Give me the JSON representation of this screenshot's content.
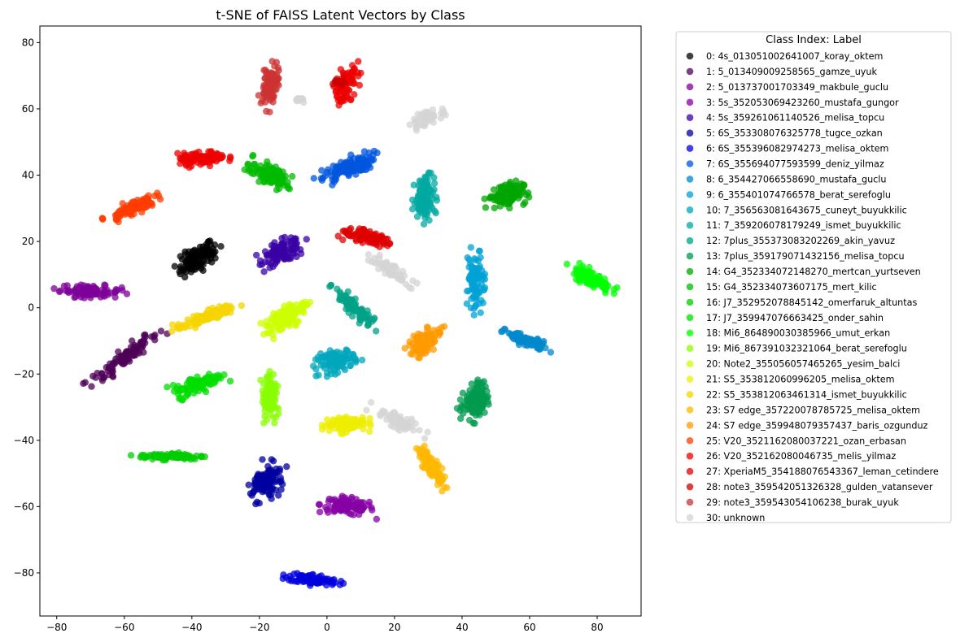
{
  "chart_data": {
    "type": "scatter",
    "title": "t-SNE of FAISS Latent Vectors by Class",
    "xlabel": "",
    "ylabel": "",
    "xlim": [
      -85,
      93
    ],
    "ylim": [
      -93,
      85
    ],
    "xticks": [
      -80,
      -60,
      -40,
      -20,
      0,
      20,
      40,
      60,
      80
    ],
    "yticks": [
      -80,
      -60,
      -40,
      -20,
      0,
      20,
      40,
      60,
      80
    ],
    "grid": false,
    "legend": {
      "title": "Class Index: Label",
      "placement": "outside-right"
    },
    "series": [
      {
        "name": "0: 4s_013051002641007_koray_oktem",
        "color": "#000000",
        "clusters": [
          {
            "x": -38,
            "y": 15,
            "a": 7,
            "b": 3.2,
            "angle": 35,
            "n": 110
          }
        ]
      },
      {
        "name": "1: 5_013409009258565_gamze_uyuk",
        "color": "#4d0055",
        "clusters": [
          {
            "x": -60,
            "y": -15,
            "a": 12,
            "b": 2.2,
            "angle": 38,
            "n": 100
          }
        ]
      },
      {
        "name": "2: 5_013737001703349_makbule_guclu",
        "color": "#7e0098",
        "clusters": [
          {
            "x": -70,
            "y": 5,
            "a": 9,
            "b": 1.8,
            "angle": -3,
            "n": 95
          }
        ]
      },
      {
        "name": "3: 5s_352053069423260_mustafa_gungor",
        "color": "#8500a4",
        "clusters": [
          {
            "x": 6,
            "y": -60,
            "a": 8,
            "b": 2.5,
            "angle": -5,
            "n": 100
          }
        ]
      },
      {
        "name": "4: 5s_359261061140526_melisa_topcu",
        "color": "#3a00a6",
        "clusters": [
          {
            "x": -13,
            "y": 17,
            "a": 6.5,
            "b": 3.2,
            "angle": 20,
            "n": 105
          }
        ]
      },
      {
        "name": "5: 6S_353308076325778_tugce_ozkan",
        "color": "#0000a0",
        "clusters": [
          {
            "x": -18,
            "y": -53,
            "a": 6,
            "b": 4,
            "angle": 65,
            "n": 105
          }
        ]
      },
      {
        "name": "6: 6S_355396082974273_melisa_oktem",
        "color": "#0000dd",
        "clusters": [
          {
            "x": -4,
            "y": -82,
            "a": 7.5,
            "b": 1.6,
            "angle": -8,
            "n": 100
          }
        ]
      },
      {
        "name": "7: 6S_355694077593599_deniz_yilmaz",
        "color": "#0055dd",
        "clusters": [
          {
            "x": 6,
            "y": 42,
            "a": 8.5,
            "b": 2.8,
            "angle": 25,
            "n": 110
          }
        ]
      },
      {
        "name": "8: 6_354427066558690_mustafa_guclu",
        "color": "#0088cc",
        "clusters": [
          {
            "x": 59,
            "y": -10,
            "a": 7,
            "b": 1.6,
            "angle": -20,
            "n": 90
          }
        ]
      },
      {
        "name": "9: 6_355401074766578_berat_serefoglu",
        "color": "#00a2d6",
        "clusters": [
          {
            "x": 44,
            "y": 8,
            "a": 8.5,
            "b": 2.3,
            "angle": 90,
            "n": 100
          }
        ]
      },
      {
        "name": "10: 7_356563081643675_cuneyt_buyukkilic",
        "color": "#00a7bc",
        "clusters": [
          {
            "x": 3,
            "y": -16,
            "a": 6,
            "b": 3.2,
            "angle": 15,
            "n": 100
          }
        ]
      },
      {
        "name": "11: 7_359206078179249_ismet_buyukkilic",
        "color": "#00a8a2",
        "clusters": [
          {
            "x": 29,
            "y": 33,
            "a": 6.5,
            "b": 3,
            "angle": 85,
            "n": 110
          }
        ]
      },
      {
        "name": "12: 7plus_355373083202269_akin_yavuz",
        "color": "#00a286",
        "clusters": [
          {
            "x": 8,
            "y": 0,
            "a": 8,
            "b": 1.8,
            "angle": -45,
            "n": 100
          }
        ]
      },
      {
        "name": "13: 7plus_359179071432156_melisa_topcu",
        "color": "#009a4d",
        "clusters": [
          {
            "x": 44,
            "y": -28,
            "a": 5.5,
            "b": 3.6,
            "angle": 70,
            "n": 110
          }
        ]
      },
      {
        "name": "14: G4_352334072148270_mertcan_yurtseven",
        "color": "#00a600",
        "clusters": [
          {
            "x": 53,
            "y": 34,
            "a": 5.5,
            "b": 3.5,
            "angle": 10,
            "n": 110
          }
        ]
      },
      {
        "name": "15: G4_352334073607175_mert_kilic",
        "color": "#00ba00",
        "clusters": [
          {
            "x": -17,
            "y": 40,
            "a": 6,
            "b": 3,
            "angle": -30,
            "n": 100
          }
        ]
      },
      {
        "name": "16: J7_352952078845142_omerfaruk_altuntas",
        "color": "#00cc00",
        "clusters": [
          {
            "x": -46,
            "y": -44.8,
            "a": 10,
            "b": 1,
            "angle": 0,
            "n": 90
          }
        ]
      },
      {
        "name": "17: J7_359947076663425_onder_sahin",
        "color": "#00dd00",
        "clusters": [
          {
            "x": -38,
            "y": -23,
            "a": 7.5,
            "b": 2.5,
            "angle": 22,
            "n": 105
          }
        ]
      },
      {
        "name": "18: Mi6_864890030385966_umut_erkan",
        "color": "#00ff00",
        "clusters": [
          {
            "x": 78,
            "y": 9,
            "a": 7,
            "b": 2.2,
            "angle": -28,
            "n": 100
          }
        ]
      },
      {
        "name": "19: Mi6_867391032321064_berat_serefoglu",
        "color": "#88ff00",
        "clusters": [
          {
            "x": -17,
            "y": -27,
            "a": 6.5,
            "b": 2.2,
            "angle": 90,
            "n": 95
          }
        ]
      },
      {
        "name": "20: Note2_355056057465265_yesim_balci",
        "color": "#ccff00",
        "clusters": [
          {
            "x": -12,
            "y": -3,
            "a": 7,
            "b": 3,
            "angle": 40,
            "n": 105
          }
        ]
      },
      {
        "name": "21: S5_353812060996205_melisa_oktem",
        "color": "#eeee00",
        "clusters": [
          {
            "x": 5,
            "y": -35,
            "a": 6.5,
            "b": 2.5,
            "angle": 5,
            "n": 100
          }
        ]
      },
      {
        "name": "22: S5_353812063461314_ismet_buyukkilic",
        "color": "#f5d400",
        "clusters": [
          {
            "x": -36,
            "y": -3,
            "a": 9.5,
            "b": 1.6,
            "angle": 22,
            "n": 100
          }
        ]
      },
      {
        "name": "23: S7 edge_357220078785725_melisa_oktem",
        "color": "#ffb800",
        "clusters": [
          {
            "x": 31,
            "y": -48,
            "a": 6.5,
            "b": 2,
            "angle": -55,
            "n": 100
          }
        ]
      },
      {
        "name": "24: S7 edge_359948079357437_baris_ozgunduz",
        "color": "#ff9a00",
        "clusters": [
          {
            "x": 29,
            "y": -10,
            "a": 6,
            "b": 3,
            "angle": 40,
            "n": 100
          }
        ]
      },
      {
        "name": "25: V20_3521162080037221_ozan_erbasan",
        "color": "#ff3c00",
        "clusters": [
          {
            "x": -58,
            "y": 30,
            "a": 7.5,
            "b": 2,
            "angle": 25,
            "n": 95
          }
        ]
      },
      {
        "name": "26: V20_352162080046735_melis_yilmaz",
        "color": "#ee0000",
        "clusters": [
          {
            "x": -37,
            "y": 45,
            "a": 7,
            "b": 2,
            "angle": 5,
            "n": 100
          },
          {
            "x": 6,
            "y": 68,
            "a": 6,
            "b": 3,
            "angle": 60,
            "n": 80
          }
        ]
      },
      {
        "name": "27: XperiaM5_354188076543367_leman_cetindere",
        "color": "#dd0000",
        "clusters": [
          {
            "x": 12,
            "y": 21,
            "a": 8.5,
            "b": 2,
            "angle": -10,
            "n": 95
          }
        ]
      },
      {
        "name": "28: note3_359542051326328_gulden_vatansever",
        "color": "#cc0000",
        "clusters": [
          {
            "x": 4,
            "y": 68,
            "a": 3,
            "b": 2,
            "angle": 0,
            "n": 10
          }
        ]
      },
      {
        "name": "29: note3_359543054106238_burak_uyuk",
        "color": "#cc3333",
        "clusters": [
          {
            "x": -17,
            "y": 67,
            "a": 6.5,
            "b": 2.5,
            "angle": 80,
            "n": 90
          }
        ]
      },
      {
        "name": "30: unknown",
        "color": "#d4d4d4",
        "clusters": [
          {
            "x": 29,
            "y": 57,
            "a": 5,
            "b": 1.8,
            "angle": 25,
            "n": 45
          },
          {
            "x": 19,
            "y": 11,
            "a": 7,
            "b": 1.8,
            "angle": -38,
            "n": 60
          },
          {
            "x": 21,
            "y": -34,
            "a": 8,
            "b": 2,
            "angle": -30,
            "n": 65
          },
          {
            "x": -8,
            "y": 62.5,
            "a": 2,
            "b": 1,
            "angle": 0,
            "n": 10
          }
        ]
      }
    ]
  }
}
